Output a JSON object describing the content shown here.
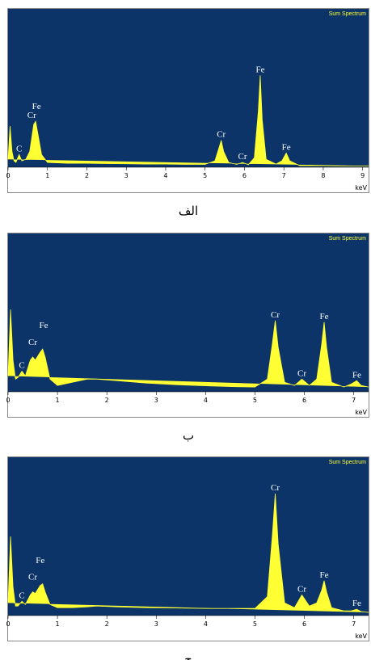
{
  "chart_data": [
    {
      "type": "area",
      "caption": "الف",
      "xlabel": "keV",
      "background": "#0c3468",
      "x": [
        0,
        0.05,
        0.1,
        0.15,
        0.2,
        0.28,
        0.35,
        0.45,
        0.55,
        0.65,
        0.7,
        0.75,
        0.85,
        1.0,
        1.5,
        2,
        2.5,
        3,
        3.5,
        4,
        4.5,
        5,
        5.25,
        5.35,
        5.41,
        5.47,
        5.6,
        5.8,
        5.95,
        6.1,
        6.25,
        6.35,
        6.4,
        6.45,
        6.55,
        6.8,
        6.95,
        7.06,
        7.15,
        7.4,
        8,
        8.5,
        9,
        9.15
      ],
      "series": [
        {
          "name": "Sum Spectrum",
          "color": "#ffff33",
          "values": [
            5,
            26,
            10,
            4,
            3,
            8,
            4,
            5,
            10,
            27,
            29,
            22,
            8,
            3,
            2.5,
            2.5,
            2.3,
            2.2,
            2,
            2,
            1.8,
            1.8,
            4,
            12,
            17,
            10,
            3,
            1.8,
            3,
            1.6,
            6,
            35,
            58,
            30,
            5,
            2,
            4,
            9,
            4,
            1,
            1,
            0.8,
            0.8,
            0.8
          ]
        }
      ],
      "xlim": [
        0,
        9.15
      ],
      "ylim": [
        0,
        100
      ],
      "xticks": [
        0,
        1,
        2,
        3,
        4,
        5,
        6,
        7,
        8,
        9
      ],
      "annotations": [
        {
          "label": "C",
          "x": 0.28
        },
        {
          "label": "Cr",
          "x": 0.6
        },
        {
          "label": "Fe",
          "x": 0.72
        },
        {
          "label": "Cr",
          "x": 5.41
        },
        {
          "label": "Cr",
          "x": 5.95
        },
        {
          "label": "Fe",
          "x": 6.4
        },
        {
          "label": "Fe",
          "x": 7.06
        }
      ]
    },
    {
      "type": "area",
      "caption": "ب",
      "xlabel": "keV",
      "background": "#0c3468",
      "x": [
        0,
        0.05,
        0.1,
        0.15,
        0.2,
        0.28,
        0.35,
        0.45,
        0.5,
        0.55,
        0.65,
        0.7,
        0.75,
        0.85,
        1.0,
        1.3,
        1.6,
        1.8,
        2.2,
        2.8,
        3.4,
        4,
        4.6,
        5.0,
        5.25,
        5.35,
        5.41,
        5.47,
        5.6,
        5.8,
        5.95,
        6.1,
        6.25,
        6.35,
        6.4,
        6.45,
        6.55,
        6.8,
        6.95,
        7.06,
        7.15,
        7.3
      ],
      "series": [
        {
          "name": "Sum Spectrum",
          "color": "#ffff33",
          "values": [
            10,
            52,
            20,
            8,
            9,
            13,
            10,
            20,
            22,
            20,
            25,
            27,
            22,
            8,
            4,
            6,
            8,
            8,
            7,
            5.5,
            4.5,
            3.8,
            3.2,
            3,
            8,
            30,
            45,
            28,
            6,
            4,
            8,
            4,
            8,
            30,
            44,
            28,
            6,
            3,
            5,
            7,
            4,
            3
          ]
        }
      ],
      "xlim": [
        0,
        7.3
      ],
      "ylim": [
        0,
        100
      ],
      "xticks": [
        0,
        1,
        2,
        3,
        4,
        5,
        6,
        7
      ],
      "annotations": [
        {
          "label": "C",
          "x": 0.28
        },
        {
          "label": "Cr",
          "x": 0.5
        },
        {
          "label": "Fe",
          "x": 0.72
        },
        {
          "label": "Cr",
          "x": 5.41
        },
        {
          "label": "Cr",
          "x": 5.95
        },
        {
          "label": "Fe",
          "x": 6.4
        },
        {
          "label": "Fe",
          "x": 7.06
        }
      ]
    },
    {
      "type": "area",
      "caption": "ج",
      "xlabel": "keV",
      "background": "#0c3468",
      "x": [
        0,
        0.05,
        0.1,
        0.15,
        0.2,
        0.28,
        0.35,
        0.45,
        0.5,
        0.55,
        0.65,
        0.7,
        0.75,
        0.85,
        1.0,
        1.3,
        1.6,
        1.8,
        2.2,
        2.8,
        3.4,
        4,
        4.6,
        5.0,
        5.25,
        5.35,
        5.41,
        5.47,
        5.6,
        5.8,
        5.95,
        6.1,
        6.25,
        6.35,
        6.4,
        6.45,
        6.55,
        6.8,
        6.95,
        7.06,
        7.15,
        7.3
      ],
      "series": [
        {
          "name": "Sum Spectrum",
          "color": "#ffff33",
          "values": [
            8,
            50,
            18,
            6,
            6,
            9,
            7,
            13,
            15,
            14,
            19,
            20,
            15,
            7,
            5,
            5,
            5.5,
            6,
            5.5,
            5,
            4.8,
            4.5,
            4.5,
            4.5,
            12,
            50,
            77,
            45,
            8,
            5,
            13,
            6,
            8,
            16,
            22,
            15,
            5,
            3,
            3,
            4,
            2.5,
            2
          ]
        }
      ],
      "xlim": [
        0,
        7.3
      ],
      "ylim": [
        0,
        100
      ],
      "xticks": [
        0,
        1,
        2,
        3,
        4,
        5,
        6,
        7
      ],
      "annotations": [
        {
          "label": "C",
          "x": 0.28
        },
        {
          "label": "Cr",
          "x": 0.5
        },
        {
          "label": "Fe",
          "x": 0.65
        },
        {
          "label": "Cr",
          "x": 5.41
        },
        {
          "label": "Cr",
          "x": 5.95
        },
        {
          "label": "Fe",
          "x": 6.4
        },
        {
          "label": "Fe",
          "x": 7.06
        }
      ]
    }
  ]
}
